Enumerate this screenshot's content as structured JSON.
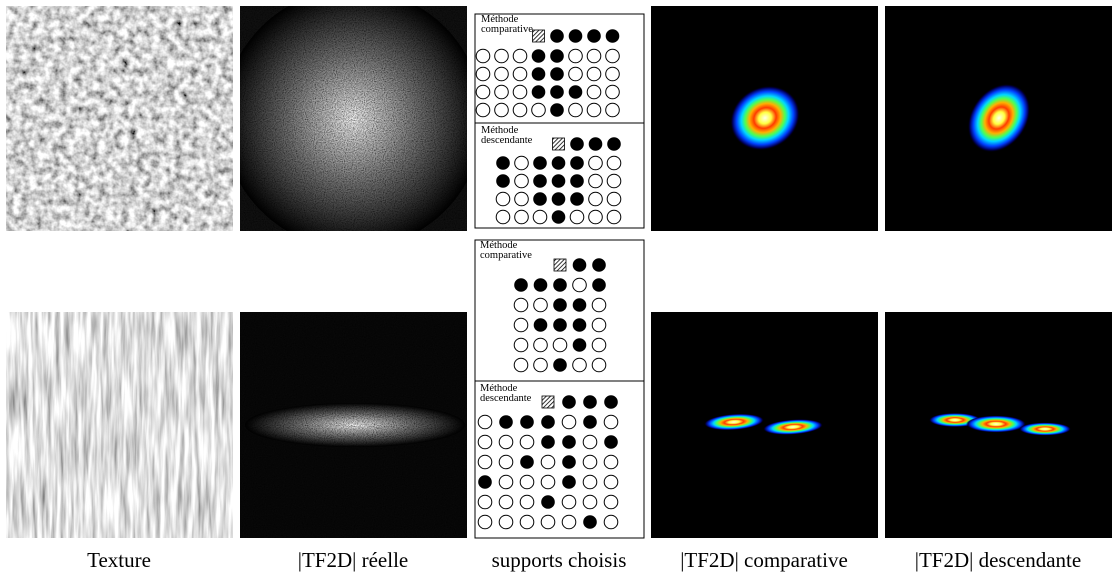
{
  "captions": [
    "Texture",
    "|TF2D| réelle",
    "supports choisis",
    "|TF2D| comparative",
    "|TF2D| descendante"
  ],
  "rows": [
    {
      "comparative": {
        "label": [
          "Méthode",
          "comparative"
        ],
        "header": "   hxxxx",
        "grid": [
          "oooxxooo",
          "oooxxooo",
          "oooxxxoo",
          "ooooxooo"
        ]
      },
      "descendante": {
        "label": [
          "Méthode",
          "descendante"
        ],
        "header": "   hxxx",
        "grid": [
          "xoxxxoo",
          "xoxxxoo",
          "ooxxxoo",
          "oooxooo"
        ]
      }
    },
    {
      "comparative": {
        "label": [
          "Méthode",
          "comparative"
        ],
        "header": "  hxx",
        "grid": [
          "xxxox",
          "ooxxo",
          "oxxxo",
          "oooxo",
          "ooxoo"
        ]
      },
      "descendante": {
        "label": [
          "Méthode",
          "descendante"
        ],
        "header": "   hxxx",
        "grid": [
          "oxxxoxo",
          "oooxxox",
          "ooxoxoo",
          "xoooxoo",
          "oooxooo",
          "oooooxo"
        ]
      }
    }
  ]
}
